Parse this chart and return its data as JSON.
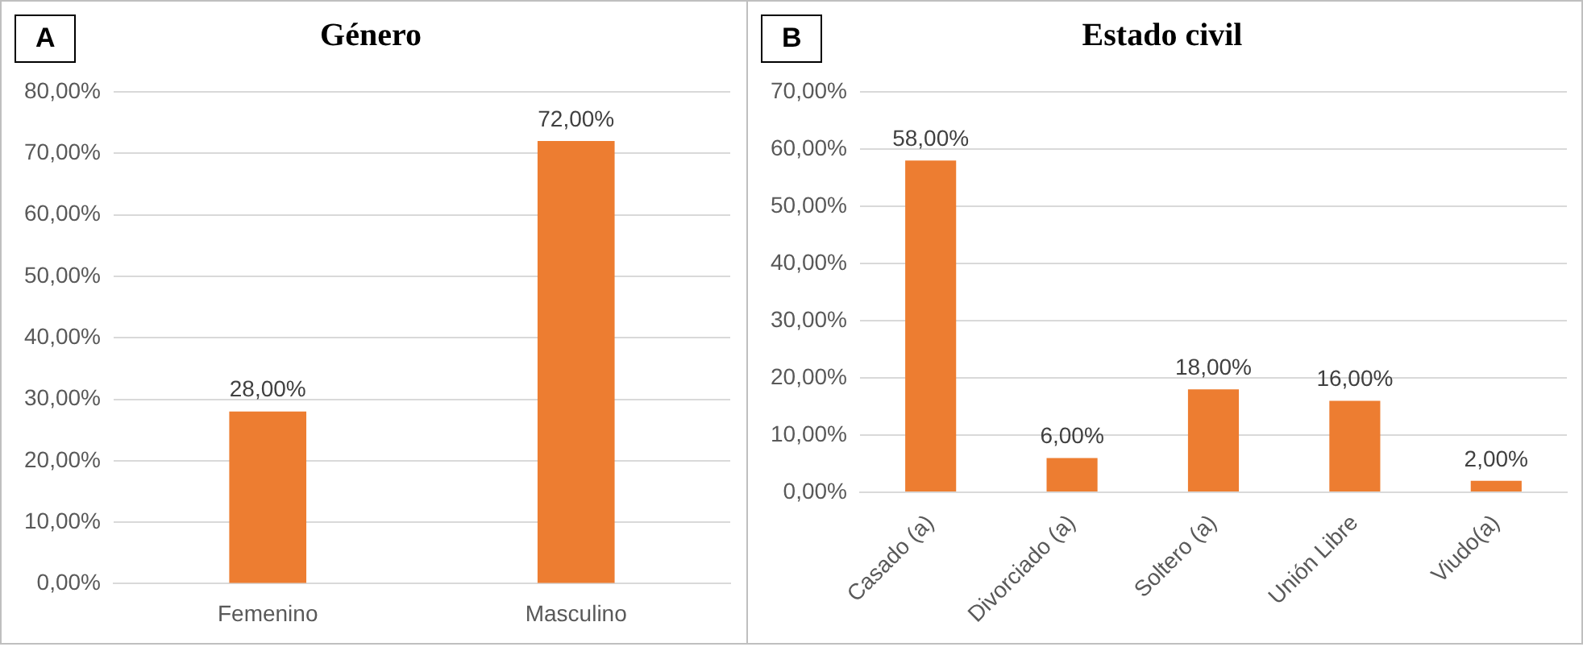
{
  "chart_data": [
    {
      "type": "bar",
      "title": "Género",
      "annotations": [
        "A"
      ],
      "categories": [
        "Femenino",
        "Masculino"
      ],
      "values": [
        28,
        72
      ],
      "color": "#ed7d31",
      "value_labels": [
        "28,00%",
        "72,00%"
      ],
      "ylim": [
        0,
        80
      ],
      "yticks": [
        {
          "value": 0,
          "label": "0,00%"
        },
        {
          "value": 10,
          "label": "10,00%"
        },
        {
          "value": 20,
          "label": "20,00%"
        },
        {
          "value": 30,
          "label": "30,00%"
        },
        {
          "value": 40,
          "label": "40,00%"
        },
        {
          "value": 50,
          "label": "50,00%"
        },
        {
          "value": 60,
          "label": "60,00%"
        },
        {
          "value": 70,
          "label": "70,00%"
        },
        {
          "value": 80,
          "label": "80,00%"
        }
      ],
      "grid": "y",
      "legend": false
    },
    {
      "type": "bar",
      "title": "Estado civil",
      "annotations": [
        "B"
      ],
      "categories": [
        "Casado (a)",
        "Divorciado (a)",
        "Soltero (a)",
        "Unión Libre",
        "Viudo(a)"
      ],
      "values": [
        58,
        6,
        18,
        16,
        2
      ],
      "color": "#ed7d31",
      "value_labels": [
        "58,00%",
        "6,00%",
        "18,00%",
        "16,00%",
        "2,00%"
      ],
      "ylim": [
        0,
        70
      ],
      "yticks": [
        {
          "value": 0,
          "label": "0,00%"
        },
        {
          "value": 10,
          "label": "10,00%"
        },
        {
          "value": 20,
          "label": "20,00%"
        },
        {
          "value": 30,
          "label": "30,00%"
        },
        {
          "value": 40,
          "label": "40,00%"
        },
        {
          "value": 50,
          "label": "50,00%"
        },
        {
          "value": 60,
          "label": "60,00%"
        },
        {
          "value": 70,
          "label": "70,00%"
        }
      ],
      "grid": "y",
      "legend": false
    }
  ]
}
